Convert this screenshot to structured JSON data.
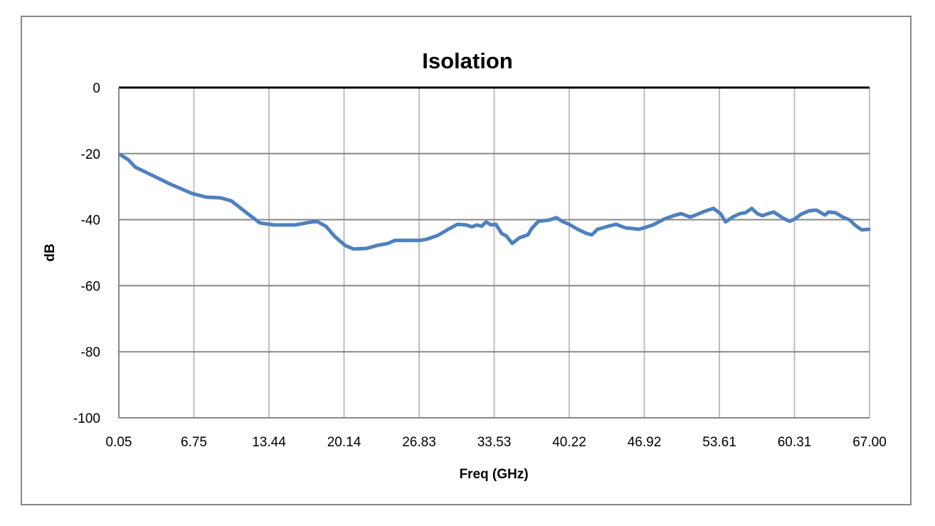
{
  "chart_data": {
    "type": "line",
    "title": "Isolation",
    "xlabel": "Freq (GHz)",
    "ylabel": "dB",
    "xlim": [
      0.05,
      67.0
    ],
    "ylim": [
      -100,
      0
    ],
    "x_tick_labels": [
      "0.05",
      "6.75",
      "13.44",
      "20.14",
      "26.83",
      "33.53",
      "40.22",
      "46.92",
      "53.61",
      "60.31",
      "67.00"
    ],
    "y_tick_labels": [
      "0",
      "-20",
      "-40",
      "-60",
      "-80",
      "-100"
    ],
    "y_ticks": [
      0,
      -20,
      -40,
      -60,
      -80,
      -100
    ],
    "grid": {
      "x": true,
      "y": true
    },
    "legend": null,
    "series": [
      {
        "name": "Isolation",
        "color": "#4f81bd",
        "x": [
          0.18,
          0.88,
          1.51,
          3.1,
          4.68,
          6.59,
          7.86,
          9.13,
          10.08,
          11.35,
          12.62,
          13.89,
          15.79,
          16.75,
          17.7,
          18.52,
          19.28,
          20.23,
          20.99,
          22.13,
          23.09,
          24.04,
          24.67,
          26.26,
          26.9,
          27.53,
          28.48,
          29.43,
          30.26,
          31.02,
          31.53,
          31.97,
          32.41,
          32.8,
          33.24,
          33.68,
          34.19,
          34.63,
          35.14,
          35.77,
          36.53,
          36.91,
          37.48,
          38.44,
          39.07,
          39.58,
          40.21,
          40.97,
          41.79,
          42.24,
          42.74,
          43.69,
          44.39,
          44.84,
          45.28,
          45.91,
          46.42,
          46.86,
          47.69,
          48.77,
          49.72,
          50.22,
          50.99,
          51.37,
          52.26,
          53.08,
          53.71,
          54.16,
          54.79,
          55.42,
          55.93,
          56.5,
          57.0,
          57.45,
          57.95,
          58.46,
          59.22,
          59.86,
          60.3,
          60.87,
          61.63,
          62.26,
          63.02,
          63.34,
          63.97,
          64.6,
          65.24,
          65.68,
          66.31,
          66.95
        ],
        "y": [
          -20.3,
          -21.8,
          -24.1,
          -26.7,
          -29.3,
          -32.1,
          -33.2,
          -33.4,
          -34.3,
          -37.7,
          -41.0,
          -41.6,
          -41.6,
          -41.0,
          -40.5,
          -42.0,
          -45.0,
          -47.8,
          -48.9,
          -48.7,
          -47.8,
          -47.2,
          -46.3,
          -46.3,
          -46.3,
          -45.9,
          -44.8,
          -42.9,
          -41.4,
          -41.6,
          -42.2,
          -41.6,
          -42.0,
          -40.7,
          -41.6,
          -41.4,
          -44.2,
          -45.0,
          -47.2,
          -45.5,
          -44.6,
          -42.5,
          -40.5,
          -40.1,
          -39.4,
          -40.5,
          -41.4,
          -42.9,
          -44.2,
          -44.6,
          -42.9,
          -42.0,
          -41.4,
          -42.0,
          -42.5,
          -42.7,
          -42.9,
          -42.5,
          -41.6,
          -39.7,
          -38.6,
          -38.2,
          -39.2,
          -38.8,
          -37.5,
          -36.6,
          -38.2,
          -40.7,
          -39.2,
          -38.2,
          -37.9,
          -36.6,
          -38.2,
          -38.8,
          -38.2,
          -37.7,
          -39.4,
          -40.5,
          -39.9,
          -38.4,
          -37.3,
          -37.1,
          -38.6,
          -37.7,
          -37.9,
          -39.2,
          -40.1,
          -41.6,
          -43.1,
          -42.9
        ]
      }
    ]
  }
}
